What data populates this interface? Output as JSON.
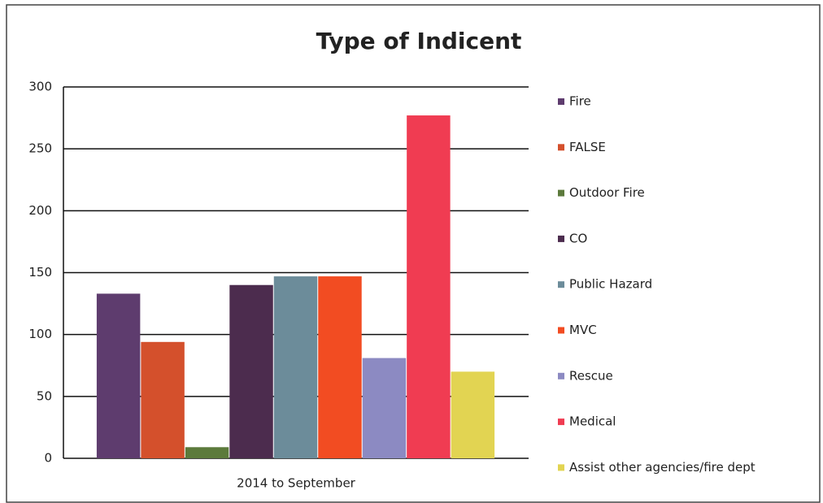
{
  "chart_data": {
    "type": "bar",
    "title": "Type of Indicent",
    "categories": [
      "2014 to September"
    ],
    "series": [
      {
        "name": "Fire",
        "color": "#5e3c6e",
        "values": [
          133
        ]
      },
      {
        "name": "FALSE",
        "color": "#d4502c",
        "values": [
          94
        ]
      },
      {
        "name": "Outdoor Fire",
        "color": "#5c7a3c",
        "values": [
          9
        ]
      },
      {
        "name": "CO",
        "color": "#4c2c4e",
        "values": [
          140
        ]
      },
      {
        "name": "Public Hazard",
        "color": "#6c8c9a",
        "values": [
          147
        ]
      },
      {
        "name": "MVC",
        "color": "#f24c22",
        "values": [
          147
        ]
      },
      {
        "name": "Rescue",
        "color": "#8c8ac2",
        "values": [
          81
        ]
      },
      {
        "name": "Medical",
        "color": "#f03c52",
        "values": [
          277
        ]
      },
      {
        "name": "Assist other agencies/fire dept",
        "color": "#e2d452",
        "values": [
          70
        ]
      }
    ],
    "ylim": [
      0,
      300
    ],
    "yticks": [
      0,
      50,
      100,
      150,
      200,
      250,
      300
    ],
    "grid": true,
    "legend": "right"
  }
}
